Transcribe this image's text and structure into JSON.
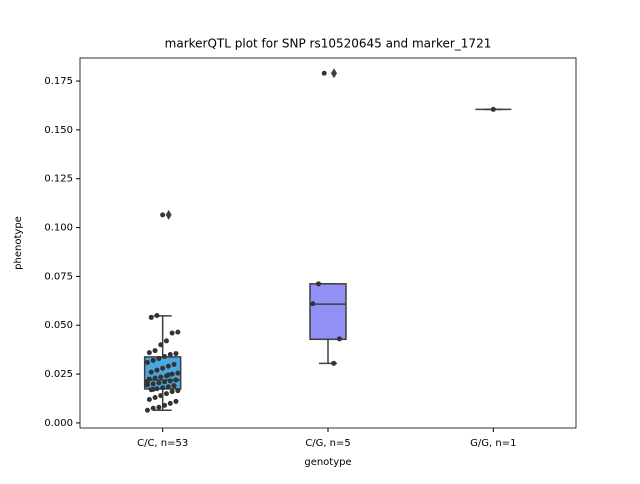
{
  "chart_data": {
    "type": "box",
    "title": "markerQTL plot for SNP rs10520645 and marker_1721",
    "x_label": "genotype",
    "y_label": "phenotype",
    "categories": [
      "C/C, n=53",
      "C/G, n=5",
      "G/G, n=1"
    ],
    "ylim": [
      -0.0026,
      0.1868
    ],
    "yticks": [
      {
        "value": 0,
        "label": "0.000"
      },
      {
        "value": 0.025,
        "label": "0.025"
      },
      {
        "value": 0.05,
        "label": "0.050"
      },
      {
        "value": 0.075,
        "label": "0.075"
      },
      {
        "value": 0.1,
        "label": "0.100"
      },
      {
        "value": 0.125,
        "label": "0.125"
      },
      {
        "value": 0.15,
        "label": "0.150"
      },
      {
        "value": 0.175,
        "label": "0.175"
      }
    ],
    "boxes": [
      {
        "color": "#4aa8e0",
        "whislo": 0.0065,
        "q1": 0.0174,
        "med": 0.022,
        "q3": 0.0338,
        "whishi": 0.0548,
        "fliers": [
          0.1065
        ]
      },
      {
        "color": "#9191f5",
        "whislo": 0.0305,
        "q1": 0.0428,
        "med": 0.0608,
        "q3": 0.0712,
        "whishi": 0.0712,
        "fliers": [
          0.179
        ]
      },
      {
        "color": "#e07070",
        "whislo": 0.1605,
        "q1": 0.1605,
        "med": 0.1605,
        "q3": 0.1605,
        "whishi": 0.1605,
        "fliers": []
      }
    ],
    "points": [
      [
        0.0065,
        0.0075,
        0.008,
        0.009,
        0.01,
        0.011,
        0.012,
        0.013,
        0.014,
        0.015,
        0.016,
        0.0165,
        0.017,
        0.0175,
        0.018,
        0.0185,
        0.019,
        0.0195,
        0.02,
        0.0205,
        0.021,
        0.0215,
        0.022,
        0.0225,
        0.023,
        0.0235,
        0.024,
        0.025,
        0.0255,
        0.026,
        0.027,
        0.028,
        0.029,
        0.03,
        0.031,
        0.032,
        0.033,
        0.034,
        0.035,
        0.0355,
        0.036,
        0.037,
        0.04,
        0.042,
        0.046,
        0.0465,
        0.054,
        0.055,
        0.1065,
        0.0245,
        0.019,
        0.0212,
        0.0172
      ],
      [
        0.0305,
        0.043,
        0.061,
        0.0712,
        0.179
      ],
      [
        0.1605
      ]
    ],
    "point_color": "#333333"
  }
}
